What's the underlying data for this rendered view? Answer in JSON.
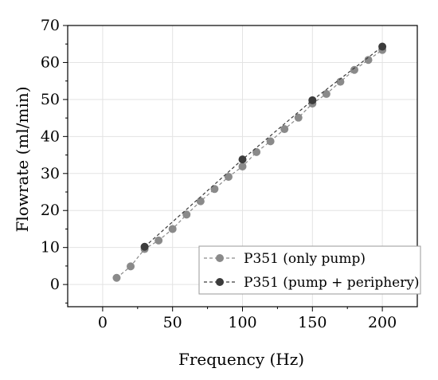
{
  "chart_data": {
    "type": "scatter",
    "title": "",
    "xlabel": "Frequency (Hz)",
    "ylabel": "Flowrate (ml/min)",
    "xlim": [
      -25,
      225
    ],
    "ylim": [
      -6,
      70
    ],
    "x_ticks": [
      0,
      50,
      100,
      150,
      200
    ],
    "y_ticks": [
      0,
      10,
      20,
      30,
      40,
      50,
      60,
      70
    ],
    "grid": true,
    "legend_position": "bottom-right",
    "series": [
      {
        "name": "P351 (only pump)",
        "color": "#8a8a8a",
        "line_style": "dashed",
        "x": [
          10,
          20,
          30,
          40,
          50,
          60,
          70,
          80,
          90,
          100,
          110,
          120,
          130,
          140,
          150,
          160,
          170,
          180,
          190,
          200
        ],
        "y": [
          1.8,
          4.9,
          9.6,
          11.9,
          15.0,
          18.9,
          22.5,
          25.8,
          29.1,
          31.9,
          35.8,
          38.7,
          42.0,
          45.1,
          48.9,
          51.5,
          54.8,
          58.0,
          60.7,
          63.4
        ]
      },
      {
        "name": "P351 (pump + periphery)",
        "color": "#3c3c3c",
        "line_style": "dashed",
        "x": [
          30,
          100,
          150,
          200
        ],
        "y": [
          10.2,
          33.8,
          49.8,
          64.3
        ]
      }
    ]
  }
}
